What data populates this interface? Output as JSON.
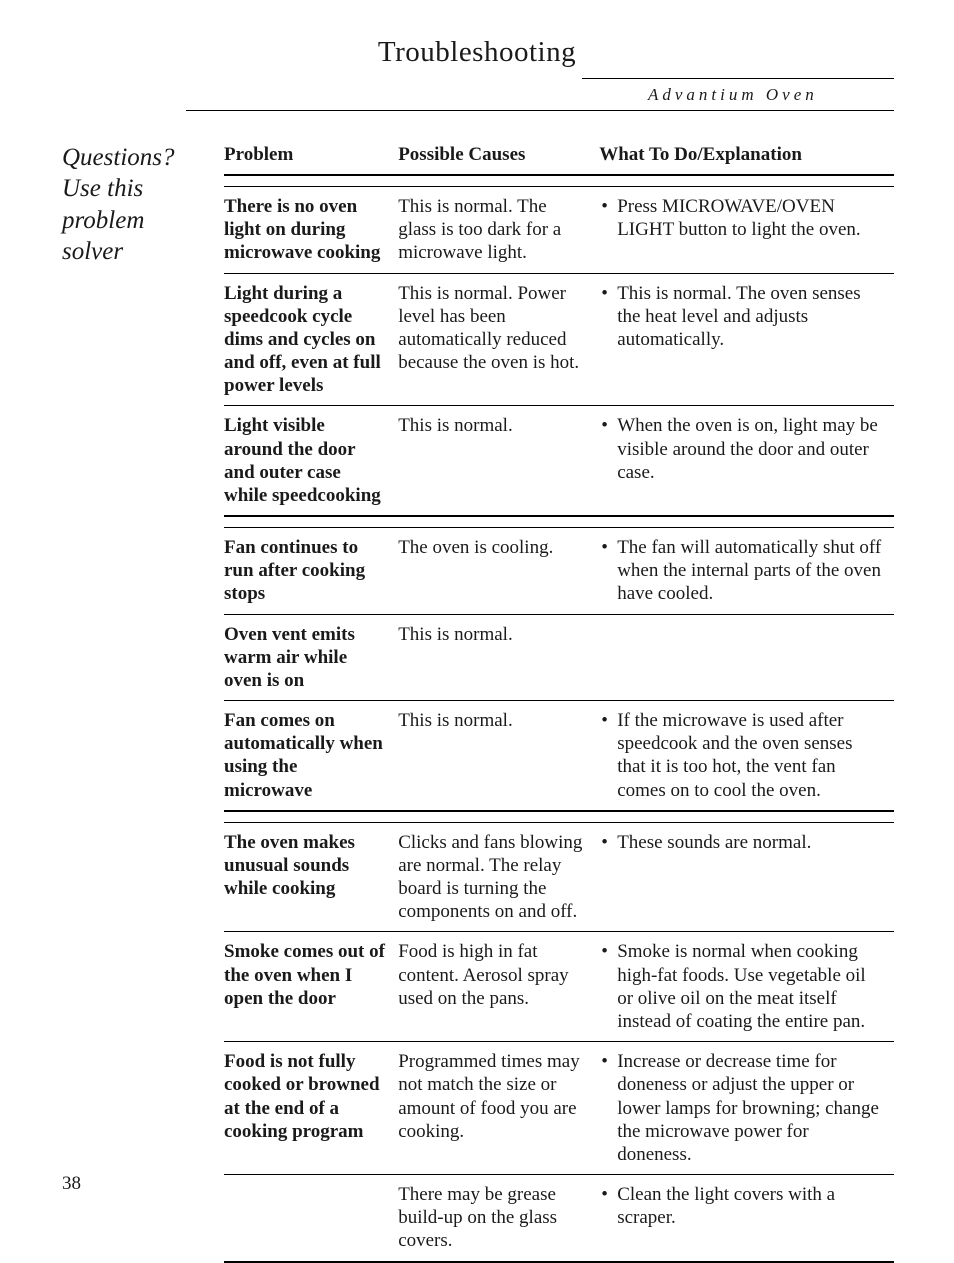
{
  "page": {
    "title": "Troubleshooting",
    "subtitle": "Advantium Oven",
    "side_heading": "Questions? Use this problem solver",
    "page_number": "38"
  },
  "columns": {
    "problem": "Problem",
    "causes": "Possible Causes",
    "fix": "What To Do/Explanation"
  },
  "sections": [
    {
      "rows": [
        {
          "problem": "There is no oven light on during microwave cooking",
          "cause": "This is normal. The glass is too dark for a microwave light.",
          "fix": [
            "Press MICROWAVE/OVEN LIGHT button to light the oven."
          ]
        },
        {
          "problem": "Light during a speedcook cycle dims and cycles on and off, even at full power levels",
          "cause": "This is normal. Power level has been automatically reduced because the oven is hot.",
          "fix": [
            "This is normal. The oven senses the heat level and adjusts automatically."
          ]
        },
        {
          "problem": "Light visible around the door and outer case while speedcooking",
          "cause": "This is normal.",
          "fix": [
            "When the oven is on, light may be visible around the door and outer case."
          ]
        }
      ]
    },
    {
      "rows": [
        {
          "problem": "Fan continues to run after cooking stops",
          "cause": "The oven is cooling.",
          "fix": [
            "The fan will automatically shut off when the internal parts of the oven have cooled."
          ]
        },
        {
          "problem": "Oven vent emits warm air while oven is on",
          "cause": "This is normal.",
          "fix": []
        },
        {
          "problem": "Fan comes on automatically when using the microwave",
          "cause": "This is normal.",
          "fix": [
            "If the microwave is used after speedcook and the oven senses that it is too hot, the vent fan comes on to cool the oven."
          ]
        }
      ]
    },
    {
      "rows": [
        {
          "problem": "The oven makes unusual sounds while cooking",
          "cause": "Clicks and fans blowing are normal. The relay board is turning the components on and off.",
          "fix": [
            "These sounds are normal."
          ]
        },
        {
          "problem": "Smoke comes out of the oven when I open the door",
          "cause": "Food is high in fat content. Aerosol spray used on the pans.",
          "fix": [
            "Smoke is normal when cooking high-fat foods. Use vegetable oil or olive oil on the meat itself instead of coating the entire pan."
          ]
        },
        {
          "problem": "Food is not fully cooked or browned at the end of a cooking program",
          "cause": "Programmed times may not match the size or amount of food you are cooking.",
          "fix": [
            "Increase or decrease time for doneness or adjust the upper or lower lamps for browning; change the microwave power for doneness."
          ]
        },
        {
          "problem": "",
          "cause": "There may be grease build-up on the glass covers.",
          "fix": [
            "Clean the light covers with a scraper."
          ]
        }
      ]
    }
  ]
}
